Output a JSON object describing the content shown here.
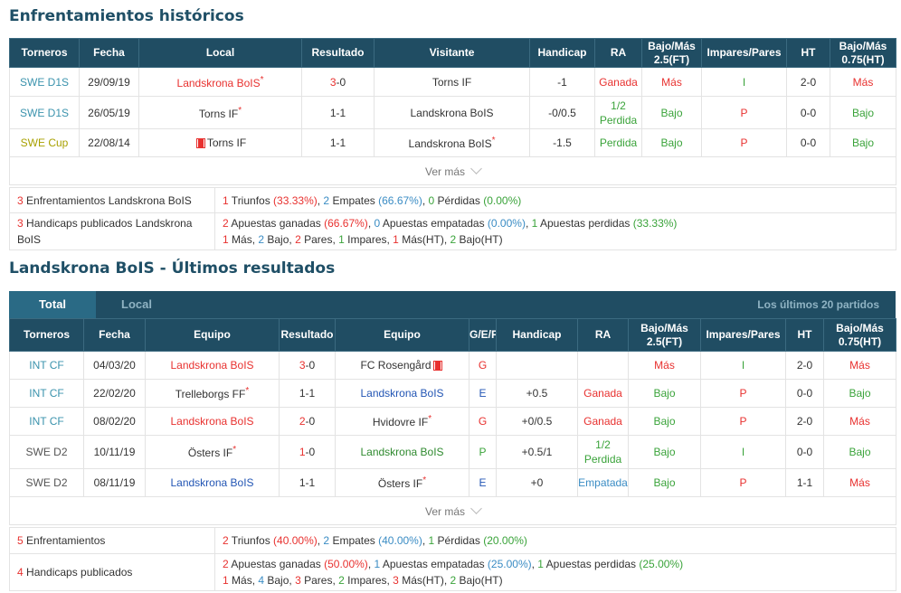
{
  "h2h": {
    "title": "Enfrentamientos históricos",
    "headers": [
      "Torneros",
      "Fecha",
      "Local",
      "Resultado",
      "Visitante",
      "Handicap",
      "RA",
      "Bajo/Más 2.5(FT)",
      "Impares/Pares",
      "HT",
      "Bajo/Más 0.75(HT)"
    ],
    "rows": [
      {
        "league": "SWE D1S",
        "date": "29/09/19",
        "home": "Landskrona BoIS",
        "home_star": "*",
        "home_flag": false,
        "score_a": "3",
        "score_b": "-0",
        "away": "Torns IF",
        "away_star": "",
        "handicap": "-1",
        "ra": "Ganada",
        "ou": "Más",
        "oe": "I",
        "ht": "2-0",
        "ou_ht": "Más"
      },
      {
        "league": "SWE D1S",
        "date": "26/05/19",
        "home": "Torns IF",
        "home_star": "*",
        "home_flag": false,
        "score_a": "1",
        "score_b": "-1",
        "away": "Landskrona BoIS",
        "away_star": "",
        "handicap": "-0/0.5",
        "ra": "1/2 Perdida",
        "ou": "Bajo",
        "oe": "P",
        "ht": "0-0",
        "ou_ht": "Bajo"
      },
      {
        "league": "SWE Cup",
        "date": "22/08/14",
        "home": "Torns IF",
        "home_star": "",
        "home_flag": true,
        "score_a": "1",
        "score_b": "-1",
        "away": "Landskrona BoIS",
        "away_star": "*",
        "handicap": "-1.5",
        "ra": "Perdida",
        "ou": "Bajo",
        "oe": "P",
        "ht": "0-0",
        "ou_ht": "Bajo"
      }
    ],
    "ver_mas": "Ver más",
    "summary": {
      "row1_count": "3",
      "row1_label": " Enfrentamientos Landskrona BoIS",
      "row1": {
        "w": "1",
        "w_lbl": " Triunfos ",
        "w_pct": "(33.33%)",
        "d": "2",
        "d_lbl": " Empates ",
        "d_pct": "(66.67%)",
        "l": "0",
        "l_lbl": " Pérdidas ",
        "l_pct": "(0.00%)"
      },
      "row2_count": "3",
      "row2_label": " Handicaps publicados Landskrona BoIS",
      "row2a": {
        "w": "2",
        "w_lbl": " Apuestas ganadas ",
        "w_pct": "(66.67%)",
        "d": "0",
        "d_lbl": " Apuestas empatadas ",
        "d_pct": "(0.00%)",
        "l": "1",
        "l_lbl": " Apuestas perdidas ",
        "l_pct": "(33.33%)"
      },
      "row2b": {
        "a": "1",
        "a_lbl": " Más, ",
        "b": "2",
        "b_lbl": " Bajo, ",
        "c": "2",
        "c_lbl": " Pares, ",
        "d": "1",
        "d_lbl": " Impares, ",
        "e": "1",
        "e_lbl": " Más(HT), ",
        "f": "2",
        "f_lbl": " Bajo(HT)"
      }
    }
  },
  "recent": {
    "title": "Landskrona BoIS - Últimos resultados",
    "tabs": {
      "total": "Total",
      "local": "Local",
      "right": "Los últimos 20 partidos"
    },
    "headers": [
      "Torneros",
      "Fecha",
      "Equipo",
      "Resultado",
      "Equipo",
      "G/E/P",
      "Handicap",
      "RA",
      "Bajo/Más 2.5(FT)",
      "Impares/Pares",
      "HT",
      "Bajo/Más 0.75(HT)"
    ],
    "rows": [
      {
        "league": "INT CF",
        "date": "04/03/20",
        "home": "Landskrona BoIS",
        "home_star": "",
        "score_a": "3",
        "score_b": "-0",
        "away": "FC Rosengård",
        "away_star": "",
        "away_flag": true,
        "gep": "G",
        "handicap": "",
        "ra": "",
        "ou": "Más",
        "oe": "I",
        "ht": "2-0",
        "ou_ht": "Más"
      },
      {
        "league": "INT CF",
        "date": "22/02/20",
        "home": "Trelleborgs FF",
        "home_star": "*",
        "score_a": "1",
        "score_b": "-1",
        "away": "Landskrona BoIS",
        "away_star": "",
        "away_flag": false,
        "gep": "E",
        "handicap": "+0.5",
        "ra": "Ganada",
        "ou": "Bajo",
        "oe": "P",
        "ht": "0-0",
        "ou_ht": "Bajo"
      },
      {
        "league": "INT CF",
        "date": "08/02/20",
        "home": "Landskrona BoIS",
        "home_star": "",
        "score_a": "2",
        "score_b": "-0",
        "away": "Hvidovre IF",
        "away_star": "*",
        "away_flag": false,
        "gep": "G",
        "handicap": "+0/0.5",
        "ra": "Ganada",
        "ou": "Bajo",
        "oe": "P",
        "ht": "2-0",
        "ou_ht": "Más"
      },
      {
        "league": "SWE D2",
        "date": "10/11/19",
        "home": "Östers IF",
        "home_star": "*",
        "score_a": "1",
        "score_b": "-0",
        "away": "Landskrona BoIS",
        "away_star": "",
        "away_flag": false,
        "gep": "P",
        "handicap": "+0.5/1",
        "ra": "1/2 Perdida",
        "ou": "Bajo",
        "oe": "I",
        "ht": "0-0",
        "ou_ht": "Bajo"
      },
      {
        "league": "SWE D2",
        "date": "08/11/19",
        "home": "Landskrona BoIS",
        "home_star": "",
        "score_a": "1",
        "score_b": "-1",
        "away": "Östers IF",
        "away_star": "*",
        "away_flag": false,
        "gep": "E",
        "handicap": "+0",
        "ra": "Empatada",
        "ou": "Bajo",
        "oe": "P",
        "ht": "1-1",
        "ou_ht": "Más"
      }
    ],
    "ver_mas": "Ver más",
    "summary": {
      "row1_count": "5",
      "row1_label": " Enfrentamientos",
      "row1": {
        "w": "2",
        "w_lbl": " Triunfos ",
        "w_pct": "(40.00%)",
        "d": "2",
        "d_lbl": " Empates ",
        "d_pct": "(40.00%)",
        "l": "1",
        "l_lbl": " Pérdidas ",
        "l_pct": "(20.00%)"
      },
      "row2_count": "4",
      "row2_label": " Handicaps publicados",
      "row2a": {
        "w": "2",
        "w_lbl": " Apuestas ganadas ",
        "w_pct": "(50.00%)",
        "d": "1",
        "d_lbl": " Apuestas empatadas ",
        "d_pct": "(25.00%)",
        "l": "1",
        "l_lbl": " Apuestas perdidas ",
        "l_pct": "(25.00%)"
      },
      "row2b": {
        "a": "1",
        "a_lbl": " Más, ",
        "b": "4",
        "b_lbl": " Bajo, ",
        "c": "3",
        "c_lbl": " Pares, ",
        "d": "2",
        "d_lbl": " Impares, ",
        "e": "3",
        "e_lbl": " Más(HT), ",
        "f": "2",
        "f_lbl": " Bajo(HT)"
      }
    }
  }
}
